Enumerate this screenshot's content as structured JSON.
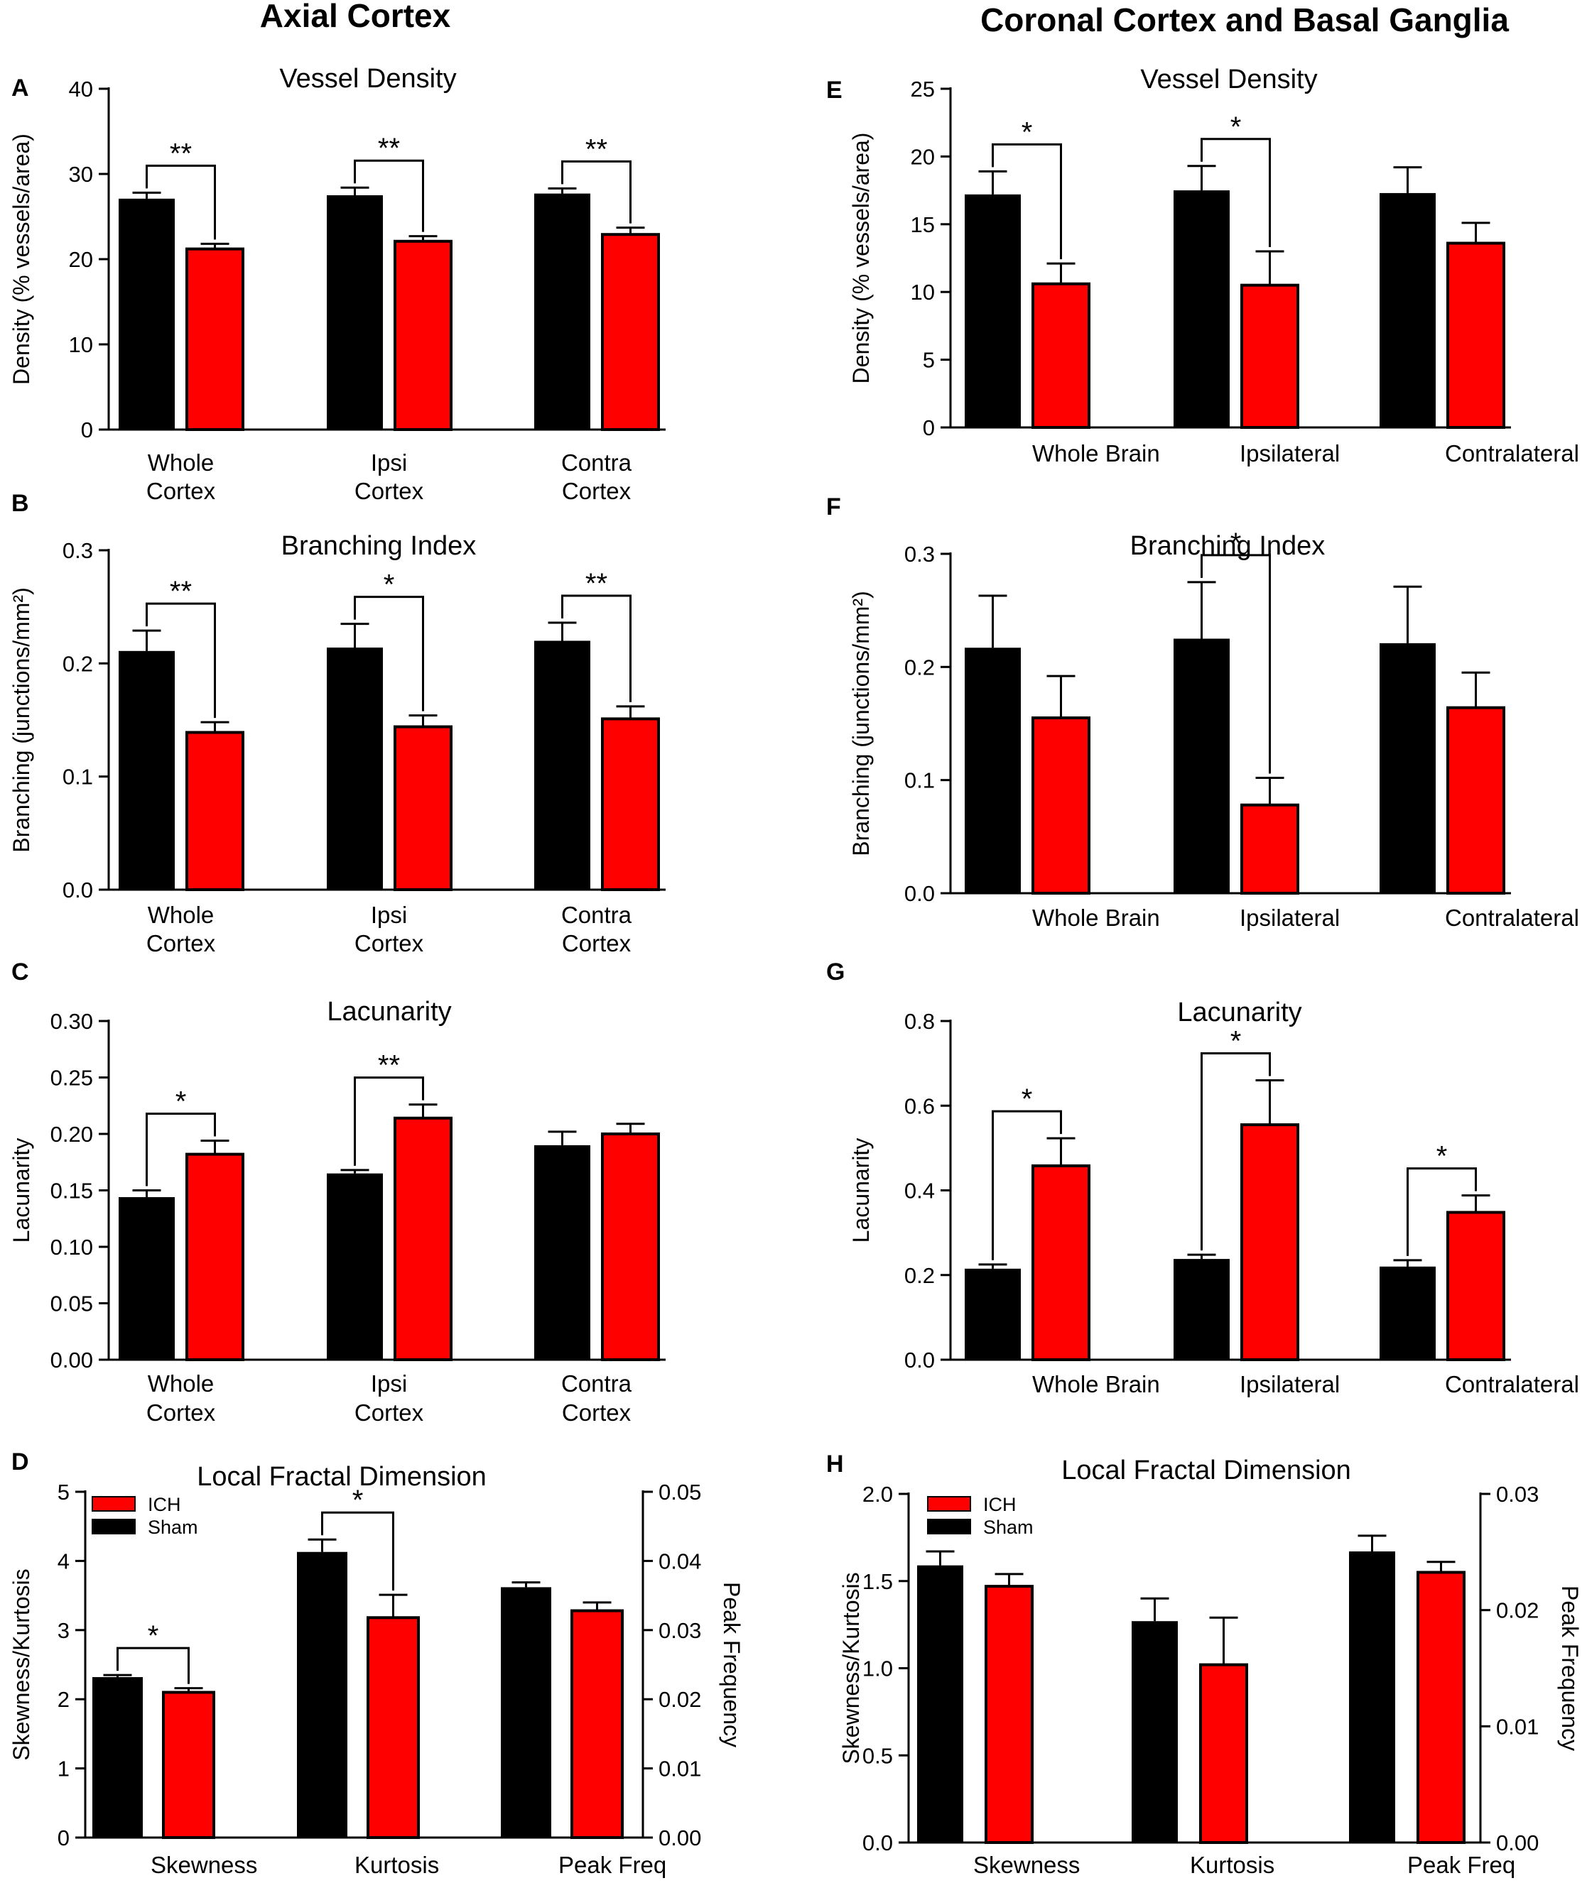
{
  "column_titles": [
    "Axial Cortex",
    "Coronal Cortex and Basal Ganglia"
  ],
  "colors": {
    "sham": "#000000",
    "ich": "#ff0000"
  },
  "chart_data": [
    {
      "id": "A",
      "type": "bar",
      "title": "Vessel Density",
      "ylabel": "Density (% vessels/area)",
      "ylim": [
        0,
        40
      ],
      "yticks": [
        "0",
        "10",
        "20",
        "30",
        "40"
      ],
      "categories": [
        [
          "Whole",
          "Cortex"
        ],
        [
          "Ipsi",
          "Cortex"
        ],
        [
          "Contra",
          "Cortex"
        ]
      ],
      "series": [
        {
          "name": "Sham",
          "values": [
            27.1,
            27.5,
            27.7
          ],
          "errors": [
            0.7,
            0.9,
            0.6
          ]
        },
        {
          "name": "ICH",
          "values": [
            21.2,
            22.1,
            22.9
          ],
          "errors": [
            0.6,
            0.6,
            0.8
          ]
        }
      ],
      "significance": [
        {
          "category": 0,
          "label": "**"
        },
        {
          "category": 1,
          "label": "**"
        },
        {
          "category": 2,
          "label": "**"
        }
      ]
    },
    {
      "id": "B",
      "type": "bar",
      "title": "Branching Index",
      "ylabel": "Branching (junctions/mm²)",
      "ylim": [
        0,
        0.3
      ],
      "yticks": [
        "0.0",
        "0.1",
        "0.2",
        "0.3"
      ],
      "categories": [
        [
          "Whole",
          "Cortex"
        ],
        [
          "Ipsi",
          "Cortex"
        ],
        [
          "Contra",
          "Cortex"
        ]
      ],
      "series": [
        {
          "name": "Sham",
          "values": [
            0.211,
            0.214,
            0.22
          ],
          "errors": [
            0.018,
            0.021,
            0.016
          ]
        },
        {
          "name": "ICH",
          "values": [
            0.139,
            0.144,
            0.151
          ],
          "errors": [
            0.009,
            0.01,
            0.011
          ]
        }
      ],
      "significance": [
        {
          "category": 0,
          "label": "**"
        },
        {
          "category": 1,
          "label": "*"
        },
        {
          "category": 2,
          "label": "**"
        }
      ]
    },
    {
      "id": "C",
      "type": "bar",
      "title": "Lacunarity",
      "ylabel": "Lacunarity",
      "ylim": [
        0,
        0.3
      ],
      "yticks": [
        "0.00",
        "0.05",
        "0.10",
        "0.15",
        "0.20",
        "0.25",
        "0.30"
      ],
      "categories": [
        [
          "Whole",
          "Cortex"
        ],
        [
          "Ipsi",
          "Cortex"
        ],
        [
          "Contra",
          "Cortex"
        ]
      ],
      "series": [
        {
          "name": "Sham",
          "values": [
            0.144,
            0.165,
            0.19
          ],
          "errors": [
            0.006,
            0.003,
            0.012
          ]
        },
        {
          "name": "ICH",
          "values": [
            0.182,
            0.214,
            0.2
          ],
          "errors": [
            0.012,
            0.012,
            0.009
          ]
        }
      ],
      "significance": [
        {
          "category": 0,
          "label": "*"
        },
        {
          "category": 1,
          "label": "**"
        }
      ]
    },
    {
      "id": "D",
      "type": "bar",
      "title": "Local Fractal Dimension",
      "ylabel": "Skewness/Kurtosis",
      "ylabel_right": "Peak Frequency",
      "ylim": [
        0,
        5
      ],
      "yticks": [
        "0",
        "1",
        "2",
        "3",
        "4",
        "5"
      ],
      "ylim_right": [
        0,
        0.05
      ],
      "yticks_right": [
        "0.00",
        "0.01",
        "0.02",
        "0.03",
        "0.04",
        "0.05"
      ],
      "categories": [
        [
          "Skewness"
        ],
        [
          "Kurtosis"
        ],
        [
          "Peak Freq"
        ]
      ],
      "series": [
        {
          "name": "Sham",
          "values": [
            2.32,
            4.13,
            3.62
          ],
          "errors": [
            0.03,
            0.18,
            0.07
          ]
        },
        {
          "name": "ICH",
          "values": [
            2.1,
            3.18,
            3.28
          ],
          "errors": [
            0.06,
            0.33,
            0.12
          ]
        }
      ],
      "legend": [
        "ICH",
        "Sham"
      ],
      "significance": [
        {
          "category": 0,
          "label": "*"
        },
        {
          "category": 1,
          "label": "*"
        }
      ]
    },
    {
      "id": "E",
      "type": "bar",
      "title": "Vessel Density",
      "ylabel": "Density (% vessels/area)",
      "ylim": [
        0,
        25
      ],
      "yticks": [
        "0",
        "5",
        "10",
        "15",
        "20",
        "25"
      ],
      "categories": [
        [
          "Whole Brain"
        ],
        [
          "Ipsilateral"
        ],
        [
          "Contralateral"
        ]
      ],
      "series": [
        {
          "name": "Sham",
          "values": [
            17.2,
            17.5,
            17.3
          ],
          "errors": [
            1.7,
            1.8,
            1.9
          ]
        },
        {
          "name": "ICH",
          "values": [
            10.6,
            10.5,
            13.6
          ],
          "errors": [
            1.5,
            2.5,
            1.5
          ]
        }
      ],
      "significance": [
        {
          "category": 0,
          "label": "*"
        },
        {
          "category": 1,
          "label": "*"
        }
      ]
    },
    {
      "id": "F",
      "type": "bar",
      "title": "Branching Index",
      "ylabel": "Branching (junctions/mm²)",
      "ylim": [
        0,
        0.3
      ],
      "yticks": [
        "0.0",
        "0.1",
        "0.2",
        "0.3"
      ],
      "categories": [
        [
          "Whole Brain"
        ],
        [
          "Ipsilateral"
        ],
        [
          "Contralateral"
        ]
      ],
      "series": [
        {
          "name": "Sham",
          "values": [
            0.217,
            0.225,
            0.221
          ],
          "errors": [
            0.046,
            0.05,
            0.05
          ]
        },
        {
          "name": "ICH",
          "values": [
            0.155,
            0.078,
            0.164
          ],
          "errors": [
            0.037,
            0.024,
            0.031
          ]
        }
      ],
      "significance": [
        {
          "category": 1,
          "label": "*"
        }
      ]
    },
    {
      "id": "G",
      "type": "bar",
      "title": "Lacunarity",
      "ylabel": "Lacunarity",
      "ylim": [
        0,
        0.8
      ],
      "yticks": [
        "0.0",
        "0.2",
        "0.4",
        "0.6",
        "0.8"
      ],
      "categories": [
        [
          "Whole Brain"
        ],
        [
          "Ipsilateral"
        ],
        [
          "Contralateral"
        ]
      ],
      "series": [
        {
          "name": "Sham",
          "values": [
            0.215,
            0.238,
            0.22
          ],
          "errors": [
            0.01,
            0.01,
            0.015
          ]
        },
        {
          "name": "ICH",
          "values": [
            0.458,
            0.555,
            0.348
          ],
          "errors": [
            0.065,
            0.105,
            0.04
          ]
        }
      ],
      "significance": [
        {
          "category": 0,
          "label": "*"
        },
        {
          "category": 1,
          "label": "*"
        },
        {
          "category": 2,
          "label": "*"
        }
      ]
    },
    {
      "id": "H",
      "type": "bar",
      "title": "Local Fractal Dimension",
      "ylabel": "Skewness/Kurtosis",
      "ylabel_right": "Peak Frequency",
      "ylim": [
        0,
        2
      ],
      "yticks": [
        "0.0",
        "0.5",
        "1.0",
        "1.5",
        "2.0"
      ],
      "ylim_right": [
        0,
        0.03
      ],
      "yticks_right": [
        "0.00",
        "0.01",
        "0.02",
        "0.03"
      ],
      "categories": [
        [
          "Skewness"
        ],
        [
          "Kurtosis"
        ],
        [
          "Peak Freq"
        ]
      ],
      "series": [
        {
          "name": "Sham",
          "values": [
            1.59,
            1.27,
            1.67
          ],
          "errors": [
            0.08,
            0.13,
            0.09
          ]
        },
        {
          "name": "ICH",
          "values": [
            1.47,
            1.02,
            1.55
          ],
          "errors": [
            0.07,
            0.27,
            0.06
          ]
        }
      ],
      "legend": [
        "ICH",
        "Sham"
      ],
      "significance": []
    }
  ]
}
